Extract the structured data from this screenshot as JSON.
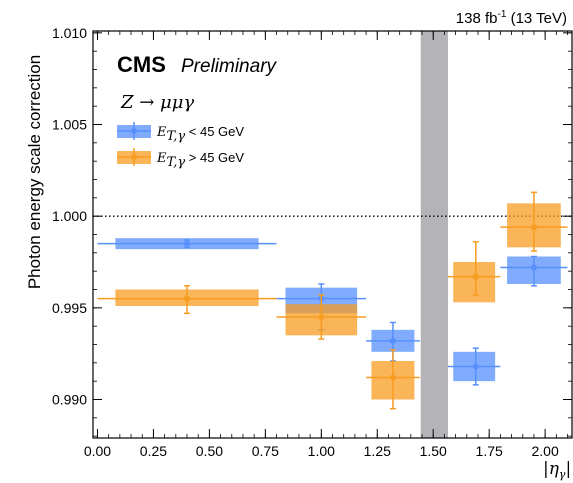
{
  "header": {
    "lumi_label": "138 fb",
    "lumi_superscript": "-1",
    "energy_label": " (13 TeV)"
  },
  "branding": {
    "experiment": "CMS",
    "status": "Preliminary"
  },
  "chart_data": {
    "type": "scatter",
    "process_label": "Z → μμγ",
    "xlabel": "|η",
    "xlabel_sub": "γ",
    "ylabel": "Photon energy scale correction",
    "xlim": [
      -0.02,
      2.12
    ],
    "ylim": [
      0.9879,
      1.0101
    ],
    "x_ticks": [
      "0.00",
      "0.25",
      "0.50",
      "0.75",
      "1.00",
      "1.25",
      "1.50",
      "1.75",
      "2.00"
    ],
    "y_ticks": [
      "0.990",
      "0.995",
      "1.000",
      "1.005",
      "1.010"
    ],
    "reference_line": 1.0,
    "excluded_band": [
      1.4442,
      1.566
    ],
    "grid": false,
    "legend_position": "top-left",
    "series": [
      {
        "name_math": "E",
        "name_sub": "T,γ",
        "name_rest": " < 45 GeV",
        "color": "#5790fc",
        "points": [
          {
            "x": 0.4,
            "xlo": 0.0,
            "xhi": 0.8,
            "y": 0.9985,
            "box_lo": 0.9982,
            "box_hi": 0.9988,
            "err_lo": 0.9983,
            "err_hi": 0.9987
          },
          {
            "x": 1.0,
            "xlo": 0.8,
            "xhi": 1.2,
            "y": 0.9955,
            "box_lo": 0.9947,
            "box_hi": 0.9961,
            "err_lo": 0.9938,
            "err_hi": 0.9963
          },
          {
            "x": 1.32,
            "xlo": 1.2,
            "xhi": 1.44,
            "y": 0.9932,
            "box_lo": 0.9926,
            "box_hi": 0.9938,
            "err_lo": 0.9921,
            "err_hi": 0.9942
          },
          {
            "x": 1.69,
            "xlo": 1.566,
            "xhi": 1.8,
            "y": 0.9918,
            "box_lo": 0.991,
            "box_hi": 0.9926,
            "err_lo": 0.9908,
            "err_hi": 0.9928
          },
          {
            "x": 1.95,
            "xlo": 1.8,
            "xhi": 2.1,
            "y": 0.9972,
            "box_lo": 0.9963,
            "box_hi": 0.9978,
            "err_lo": 0.9962,
            "err_hi": 0.9978
          }
        ]
      },
      {
        "name_math": "E",
        "name_sub": "T,γ",
        "name_rest": " > 45 GeV",
        "color": "#f89c20",
        "points": [
          {
            "x": 0.4,
            "xlo": 0.0,
            "xhi": 0.8,
            "y": 0.9955,
            "box_lo": 0.9951,
            "box_hi": 0.996,
            "err_lo": 0.9947,
            "err_hi": 0.9962
          },
          {
            "x": 1.0,
            "xlo": 0.8,
            "xhi": 1.2,
            "y": 0.9945,
            "box_lo": 0.9935,
            "box_hi": 0.9952,
            "err_lo": 0.9933,
            "err_hi": 0.9957
          },
          {
            "x": 1.32,
            "xlo": 1.2,
            "xhi": 1.44,
            "y": 0.9912,
            "box_lo": 0.99,
            "box_hi": 0.9921,
            "err_lo": 0.9895,
            "err_hi": 0.9927
          },
          {
            "x": 1.69,
            "xlo": 1.566,
            "xhi": 1.8,
            "y": 0.9967,
            "box_lo": 0.9953,
            "box_hi": 0.9975,
            "err_lo": 0.9957,
            "err_hi": 0.9986
          },
          {
            "x": 1.95,
            "xlo": 1.8,
            "xhi": 2.1,
            "y": 0.9994,
            "box_lo": 0.9983,
            "box_hi": 1.0007,
            "err_lo": 0.9981,
            "err_hi": 1.0013
          }
        ]
      }
    ]
  }
}
